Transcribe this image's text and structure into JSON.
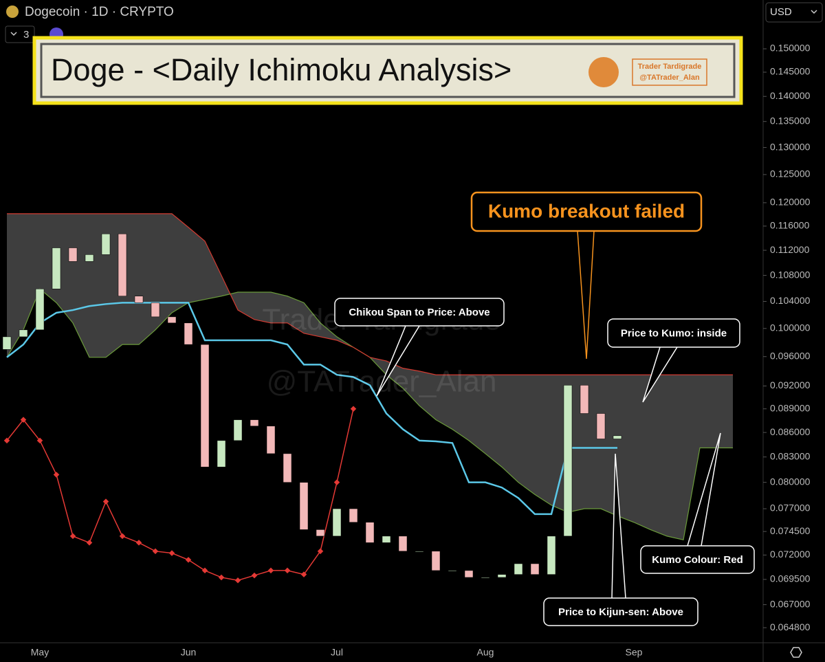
{
  "header": {
    "symbol": "Dogecoin · 1D · CRYPTO",
    "indicator_count": 3,
    "currency": "USD"
  },
  "banner": {
    "title": "Doge - <Daily Ichimoku Analysis>",
    "brand": "Trader Tardigrade",
    "handle": "@TATrader_Alan"
  },
  "annotations": [
    {
      "text": "Kumo breakout failed",
      "color": "#f7931e"
    },
    {
      "text": "Chikou Span to Price: Above",
      "color": "#ffffff"
    },
    {
      "text": "Price to Kumo: inside",
      "color": "#ffffff"
    },
    {
      "text": "Kumo Colour: Red",
      "color": "#ffffff"
    },
    {
      "text": "Price to Kijun-sen: Above",
      "color": "#ffffff"
    }
  ],
  "chart_data": {
    "type": "candlestick",
    "log_scale": true,
    "categories": [
      null,
      null,
      "May",
      null,
      null,
      null,
      null,
      null,
      null,
      null,
      null,
      "Jun",
      null,
      null,
      null,
      null,
      null,
      null,
      null,
      null,
      "Jul",
      null,
      null,
      null,
      null,
      null,
      null,
      null,
      null,
      "Aug",
      null,
      null,
      null,
      null,
      null,
      null,
      null,
      null,
      "Sep",
      null,
      null,
      null,
      null,
      null,
      null
    ],
    "open": [
      0.097,
      0.0988,
      0.0998,
      0.1059,
      0.1124,
      0.1102,
      0.1113,
      0.1147,
      0.1048,
      0.1038,
      0.1017,
      0.1008,
      0.0977,
      0.0818,
      0.085,
      0.0876,
      0.0868,
      0.0834,
      0.08,
      0.0747,
      0.074,
      0.077,
      0.0755,
      0.0733,
      0.074,
      0.0724,
      0.0724,
      0.0704,
      0.0704,
      0.0697,
      0.0697,
      0.07,
      0.0711,
      0.07,
      0.074,
      0.0921,
      0.0884,
      0.0852,
      null,
      null,
      null,
      null,
      null,
      null,
      null
    ],
    "close": [
      0.0988,
      0.0998,
      0.1059,
      0.1124,
      0.1102,
      0.1113,
      0.1147,
      0.1048,
      0.1038,
      0.1017,
      0.1008,
      0.0977,
      0.0818,
      0.085,
      0.0876,
      0.0868,
      0.0834,
      0.08,
      0.0747,
      0.074,
      0.077,
      0.0755,
      0.0733,
      0.074,
      0.0724,
      0.0724,
      0.0704,
      0.0704,
      0.0697,
      0.0697,
      0.07,
      0.0711,
      0.07,
      0.074,
      0.0921,
      0.0884,
      0.0852,
      0.0856,
      null,
      null,
      null,
      null,
      null,
      null,
      null
    ],
    "up_color": "#c7e8c0",
    "down_color": "#f2b8b8",
    "kijun": {
      "color": "#5bc8e8",
      "values": [
        0.0959,
        0.0977,
        0.1008,
        0.1023,
        0.1027,
        0.1033,
        0.1036,
        0.1038,
        0.1038,
        0.1038,
        0.1038,
        0.1038,
        0.0983,
        0.0983,
        0.0983,
        0.0983,
        0.0983,
        0.0977,
        0.0949,
        0.0949,
        0.0935,
        0.0932,
        0.0921,
        0.0884,
        0.0864,
        0.085,
        0.0849,
        0.0847,
        0.08,
        0.08,
        0.0794,
        0.0782,
        0.0764,
        0.0764,
        0.0841,
        0.0841,
        0.0841,
        0.0841,
        null,
        null,
        null,
        null,
        null,
        null,
        null
      ]
    },
    "span_a": {
      "color": "#6a9a3a",
      "values": [
        0.0959,
        0.0998,
        0.1059,
        0.1038,
        0.1008,
        0.0959,
        0.0959,
        0.0977,
        0.0977,
        0.0998,
        0.1023,
        0.1038,
        0.1043,
        0.1048,
        0.1054,
        0.1054,
        0.1054,
        0.1048,
        0.1038,
        0.1008,
        0.0988,
        0.0973,
        0.0959,
        0.0935,
        0.0917,
        0.0894,
        0.0876,
        0.0864,
        0.085,
        0.0834,
        0.0818,
        0.08,
        0.0786,
        0.0774,
        0.0766,
        0.077,
        0.077,
        0.0762,
        0.0755,
        0.0747,
        0.074,
        0.0736,
        0.0841,
        0.0841,
        0.0841
      ]
    },
    "span_b": {
      "color": "#d23a30",
      "values": [
        0.1181,
        0.1181,
        0.1181,
        0.1181,
        0.1181,
        0.1181,
        0.1181,
        0.1181,
        0.1181,
        0.1181,
        0.1181,
        0.1158,
        0.1135,
        0.108,
        0.1027,
        0.1013,
        0.1008,
        0.1008,
        0.0993,
        0.0988,
        0.0983,
        0.0973,
        0.0959,
        0.0954,
        0.0944,
        0.094,
        0.0935,
        0.0935,
        0.0935,
        0.0935,
        0.0935,
        0.0935,
        0.0935,
        0.0935,
        0.0935,
        0.0935,
        0.0935,
        0.0935,
        0.0935,
        0.0935,
        0.0935,
        0.0935,
        0.0935,
        0.0935,
        0.0935
      ]
    },
    "kumo_fill": "#8a8a8a",
    "chikou": {
      "color": "#e53935",
      "values": [
        0.085,
        0.0876,
        0.085,
        0.0809,
        0.074,
        0.0733,
        0.0778,
        0.074,
        0.0733,
        0.0724,
        0.0722,
        0.0715,
        0.0704,
        0.0697,
        0.0694,
        0.0699,
        0.0704,
        0.0704,
        0.07,
        0.0724,
        0.08,
        0.089,
        null,
        null,
        null,
        null,
        null,
        null,
        null,
        null,
        null,
        null,
        null,
        null,
        null,
        null,
        null,
        null,
        null,
        null,
        null,
        null,
        null,
        null,
        null
      ]
    },
    "ylim": [
      0.0634,
      0.161
    ],
    "yticks": [
      {
        "value": 0.15,
        "label": "0.150000"
      },
      {
        "value": 0.145,
        "label": "0.145000"
      },
      {
        "value": 0.14,
        "label": "0.140000"
      },
      {
        "value": 0.135,
        "label": "0.135000"
      },
      {
        "value": 0.13,
        "label": "0.130000"
      },
      {
        "value": 0.125,
        "label": "0.125000"
      },
      {
        "value": 0.12,
        "label": "0.120000"
      },
      {
        "value": 0.116,
        "label": "0.116000"
      },
      {
        "value": 0.112,
        "label": "0.112000"
      },
      {
        "value": 0.108,
        "label": "0.108000"
      },
      {
        "value": 0.104,
        "label": "0.104000"
      },
      {
        "value": 0.1,
        "label": "0.100000"
      },
      {
        "value": 0.096,
        "label": "0.096000"
      },
      {
        "value": 0.092,
        "label": "0.092000"
      },
      {
        "value": 0.089,
        "label": "0.089000"
      },
      {
        "value": 0.086,
        "label": "0.086000"
      },
      {
        "value": 0.083,
        "label": "0.083000"
      },
      {
        "value": 0.08,
        "label": "0.080000"
      },
      {
        "value": 0.077,
        "label": "0.077000"
      },
      {
        "value": 0.0745,
        "label": "0.074500"
      },
      {
        "value": 0.072,
        "label": "0.072000"
      },
      {
        "value": 0.0695,
        "label": "0.069500"
      },
      {
        "value": 0.067,
        "label": "0.067000"
      },
      {
        "value": 0.0648,
        "label": "0.064800"
      }
    ]
  }
}
